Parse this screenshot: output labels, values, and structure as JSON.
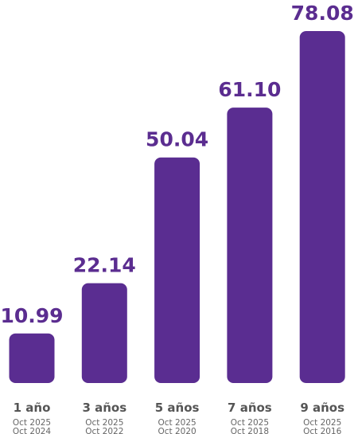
{
  "chart_data": {
    "type": "bar",
    "categories": [
      "1 año",
      "3 años",
      "5 años",
      "7 años",
      "9 años"
    ],
    "periods": [
      [
        "Oct 2025",
        "Oct 2024"
      ],
      [
        "Oct 2025",
        "Oct 2022"
      ],
      [
        "Oct 2025",
        "Oct 2020"
      ],
      [
        "Oct 2025",
        "Oct 2018"
      ],
      [
        "Oct 2025",
        "Oct 2016"
      ]
    ],
    "values": [
      10.99,
      22.14,
      50.04,
      61.1,
      78.08
    ],
    "value_labels": [
      "10.99",
      "22.14",
      "50.04",
      "61.10",
      "78.08"
    ],
    "color": "#5a2d91"
  }
}
